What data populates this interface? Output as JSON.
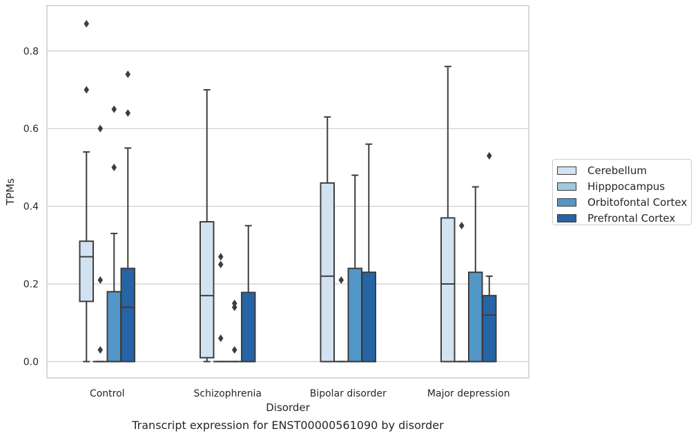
{
  "caption": "Transcript expression for ENST00000561090 by disorder",
  "legend": [
    {
      "label": "Cerebellum",
      "color": "#d2e2f1"
    },
    {
      "label": "Hipppocampus",
      "color": "#9ec9e1"
    },
    {
      "label": "Orbitofontal Cortex",
      "color": "#5397c8"
    },
    {
      "label": "Prefrontal Cortex",
      "color": "#2565a6"
    }
  ],
  "chart_data": {
    "type": "box",
    "xlabel": "Disorder",
    "ylabel": "TPMs",
    "categories": [
      "Control",
      "Schizophrenia",
      "Bipolar disorder",
      "Major depression"
    ],
    "ylim": [
      -0.042,
      0.917
    ],
    "yticks": [
      0.0,
      0.2,
      0.4,
      0.6,
      0.8
    ],
    "ytick_labels": [
      "0.0",
      "0.2",
      "0.4",
      "0.6",
      "0.8"
    ],
    "grid": "horizontal",
    "legend_position": "right",
    "series": [
      {
        "name": "Cerebellum",
        "boxes": [
          {
            "whisker_low": 0.0,
            "q1": 0.155,
            "median": 0.27,
            "q3": 0.31,
            "whisker_high": 0.54,
            "outliers": [
              0.87,
              0.7
            ]
          },
          {
            "whisker_low": 0.0,
            "q1": 0.01,
            "median": 0.17,
            "q3": 0.36,
            "whisker_high": 0.7,
            "outliers": []
          },
          {
            "whisker_low": 0.0,
            "q1": 0.0,
            "median": 0.22,
            "q3": 0.46,
            "whisker_high": 0.63,
            "outliers": []
          },
          {
            "whisker_low": 0.0,
            "q1": 0.0,
            "median": 0.2,
            "q3": 0.37,
            "whisker_high": 0.76,
            "outliers": []
          }
        ]
      },
      {
        "name": "Hipppocampus",
        "boxes": [
          {
            "whisker_low": 0.0,
            "q1": 0.0,
            "median": 0.0,
            "q3": 0.0,
            "whisker_high": 0.0,
            "outliers": [
              0.03,
              0.21,
              0.6
            ]
          },
          {
            "whisker_low": 0.0,
            "q1": 0.0,
            "median": 0.0,
            "q3": 0.0,
            "whisker_high": 0.0,
            "outliers": [
              0.06,
              0.25,
              0.27
            ]
          },
          {
            "whisker_low": 0.0,
            "q1": 0.0,
            "median": 0.0,
            "q3": 0.0,
            "whisker_high": 0.0,
            "outliers": [
              0.21
            ]
          },
          {
            "whisker_low": 0.0,
            "q1": 0.0,
            "median": 0.0,
            "q3": 0.0,
            "whisker_high": 0.0,
            "outliers": [
              0.35
            ]
          }
        ]
      },
      {
        "name": "Orbitofontal Cortex",
        "boxes": [
          {
            "whisker_low": 0.0,
            "q1": 0.0,
            "median": 0.0,
            "q3": 0.18,
            "whisker_high": 0.33,
            "outliers": [
              0.5,
              0.65
            ]
          },
          {
            "whisker_low": 0.0,
            "q1": 0.0,
            "median": 0.0,
            "q3": 0.0,
            "whisker_high": 0.0,
            "outliers": [
              0.03,
              0.14,
              0.15
            ]
          },
          {
            "whisker_low": 0.0,
            "q1": 0.0,
            "median": 0.0,
            "q3": 0.24,
            "whisker_high": 0.48,
            "outliers": []
          },
          {
            "whisker_low": 0.0,
            "q1": 0.0,
            "median": 0.0,
            "q3": 0.23,
            "whisker_high": 0.45,
            "outliers": []
          }
        ]
      },
      {
        "name": "Prefrontal Cortex",
        "boxes": [
          {
            "whisker_low": 0.0,
            "q1": 0.0,
            "median": 0.14,
            "q3": 0.24,
            "whisker_high": 0.55,
            "outliers": [
              0.64,
              0.74
            ]
          },
          {
            "whisker_low": 0.0,
            "q1": 0.0,
            "median": 0.0,
            "q3": 0.178,
            "whisker_high": 0.35,
            "outliers": []
          },
          {
            "whisker_low": 0.0,
            "q1": 0.0,
            "median": 0.0,
            "q3": 0.23,
            "whisker_high": 0.56,
            "outliers": []
          },
          {
            "whisker_low": 0.0,
            "q1": 0.0,
            "median": 0.12,
            "q3": 0.17,
            "whisker_high": 0.22,
            "outliers": [
              0.53
            ]
          }
        ]
      }
    ]
  }
}
